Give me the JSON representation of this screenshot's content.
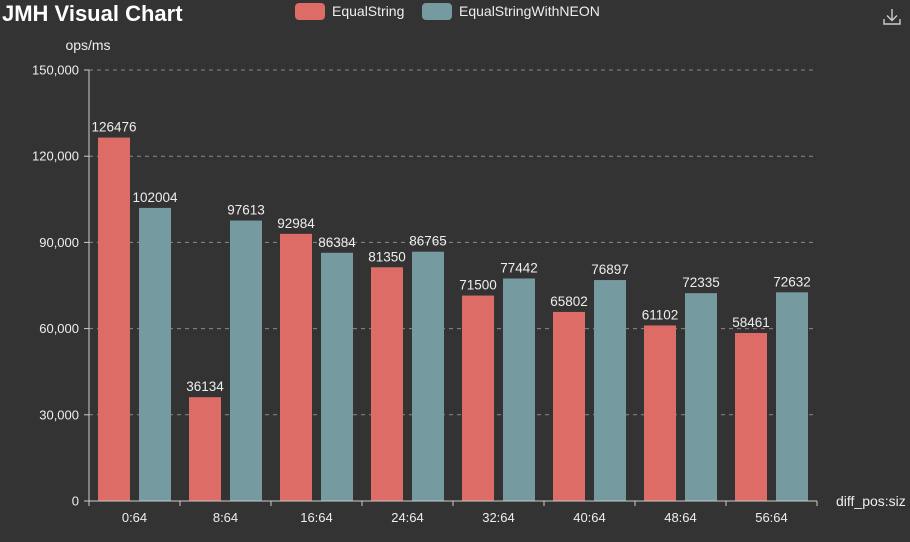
{
  "title": "JMH Visual Chart",
  "toolbox": {
    "download_icon": "download-icon"
  },
  "colors": {
    "background": "#333333",
    "series_0": "#dd6b66",
    "series_1": "#759aa0"
  },
  "chart_data": {
    "type": "bar",
    "title": "JMH Visual Chart",
    "xlabel": "diff_pos:siz",
    "ylabel": "ops/ms",
    "categories": [
      "0:64",
      "8:64",
      "16:64",
      "24:64",
      "32:64",
      "40:64",
      "48:64",
      "56:64"
    ],
    "series": [
      {
        "name": "EqualString",
        "color": "#dd6b66",
        "values": [
          126476,
          36134,
          92984,
          81350,
          71500,
          65802,
          61102,
          58461
        ]
      },
      {
        "name": "EqualStringWithNEON",
        "color": "#759aa0",
        "values": [
          102004,
          97613,
          86384,
          86765,
          77442,
          76897,
          72335,
          72632
        ]
      }
    ],
    "ylim": [
      0,
      150000
    ],
    "yticks": [
      0,
      30000,
      60000,
      90000,
      120000,
      150000
    ],
    "ytick_labels": [
      "0",
      "30,000",
      "60,000",
      "90,000",
      "120,000",
      "150,000"
    ],
    "grid": true,
    "legend_position": "top-center"
  }
}
